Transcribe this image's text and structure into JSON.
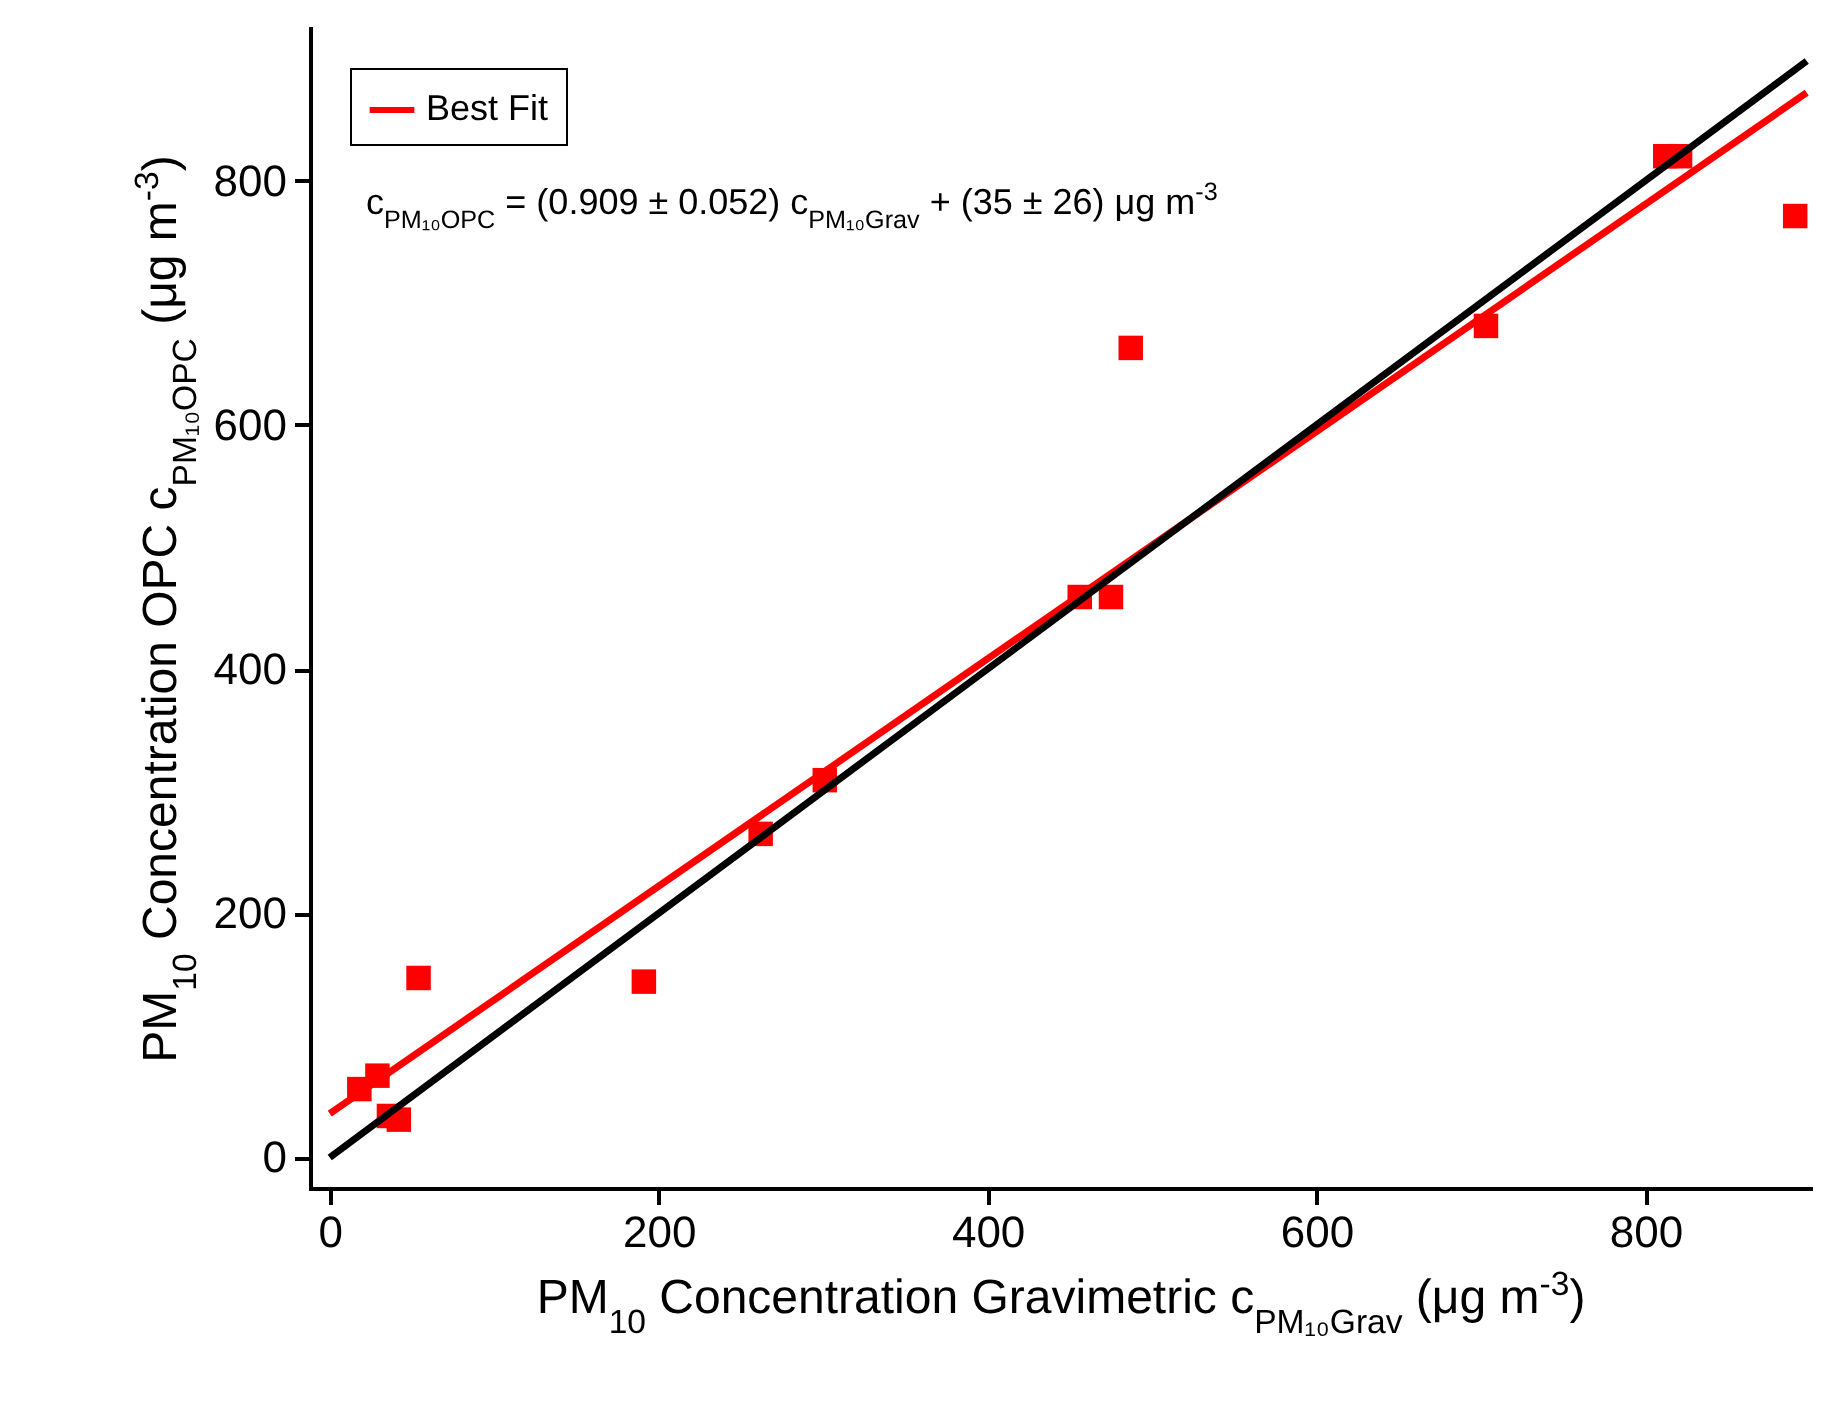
{
  "chart_data": {
    "type": "scatter",
    "xlabel": "PM$_{10}$ Concentration Gravimetric c$_{PM₁₀Grav}$ (μg m$^{-3}$)",
    "ylabel": "PM$_{10}$ Concentration OPC c$_{PM₁₀OPC}$ (μg m$^{-3}$)",
    "annotations": [
      "c$_{PM₁₀OPC}$ = (0.909 ± 0.052) c$_{PM₁₀Grav}$ + (35 ± 26) μg m$^{-3}$"
    ],
    "xlim": [
      -12,
      900
    ],
    "ylim": [
      -25,
      925
    ],
    "xticks": [
      0,
      200,
      400,
      600,
      800
    ],
    "yticks": [
      0,
      200,
      400,
      600,
      800
    ],
    "grid": false,
    "legend": "top left",
    "marker": "square",
    "series": [
      {
        "color": "#ff0000",
        "x": [
          18,
          29,
          36,
          42,
          54,
          191,
          262,
          301,
          456,
          475,
          487,
          703,
          812,
          821,
          891
        ],
        "values": [
          56,
          67,
          34,
          31,
          147,
          144,
          265,
          309,
          459,
          459,
          663,
          681,
          820,
          820,
          771
        ]
      },
      {
        "type": "line",
        "name": "Best Fit",
        "color": "#ff0000",
        "x": [
          0,
          898
        ],
        "values": [
          36,
          872
        ],
        "line_style": "solid",
        "marker": "none"
      },
      {
        "type": "line",
        "color": "#000000",
        "x": [
          0,
          898
        ],
        "values": [
          0,
          898
        ],
        "line_style": "solid",
        "marker": "none"
      }
    ]
  }
}
